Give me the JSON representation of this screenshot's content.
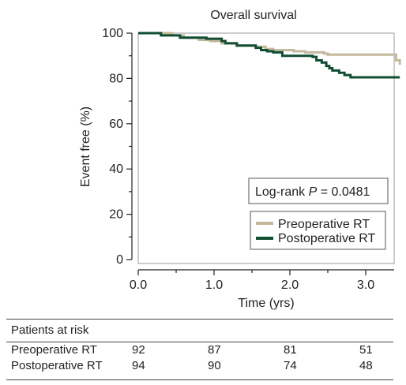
{
  "chart_data": {
    "type": "line",
    "title": "Overall survival",
    "xlabel": "Time (yrs)",
    "ylabel": "Event free (%)",
    "xlim": [
      0,
      3.45
    ],
    "ylim": [
      0,
      100
    ],
    "x_ticks": [
      "0.0",
      "1.0",
      "2.0",
      "3.0"
    ],
    "y_ticks": [
      "0",
      "20",
      "40",
      "60",
      "80",
      "100"
    ],
    "legend_position": "bottom-right",
    "annotation": {
      "prefix": "Log-rank ",
      "italic": "P",
      "suffix": " = 0.0481"
    },
    "series": [
      {
        "name": "Preoperative RT",
        "color": "#c3b99c",
        "x": [
          0,
          0.45,
          0.6,
          0.8,
          0.95,
          1.1,
          1.3,
          1.55,
          1.68,
          1.78,
          2.05,
          2.2,
          2.45,
          2.5,
          3.35,
          3.4,
          3.45
        ],
        "y": [
          100,
          99,
          98,
          97,
          96.5,
          95.5,
          94.5,
          94,
          93,
          92.5,
          92,
          91.5,
          91,
          90.5,
          90.5,
          88,
          86
        ]
      },
      {
        "name": "Postoperative RT",
        "color": "#114d33",
        "x": [
          0,
          0.3,
          0.55,
          0.9,
          1.1,
          1.15,
          1.3,
          1.55,
          1.62,
          1.7,
          1.78,
          1.9,
          2.3,
          2.35,
          2.42,
          2.48,
          2.52,
          2.56,
          2.65,
          2.72,
          2.8,
          3.45
        ],
        "y": [
          100,
          99,
          98,
          97.5,
          96.5,
          95.5,
          94.5,
          93.5,
          92.5,
          92,
          91.5,
          90,
          89.5,
          88,
          87,
          85.5,
          84.5,
          83.5,
          82.5,
          81.5,
          80.5,
          80.5
        ]
      }
    ],
    "risk_table": {
      "title": "Patients at risk",
      "timepoints": [
        0,
        1,
        2,
        3
      ],
      "rows": [
        {
          "label": "Preoperative RT",
          "values": [
            "92",
            "87",
            "81",
            "51"
          ]
        },
        {
          "label": "Postoperative RT",
          "values": [
            "94",
            "90",
            "74",
            "48"
          ]
        }
      ]
    }
  }
}
